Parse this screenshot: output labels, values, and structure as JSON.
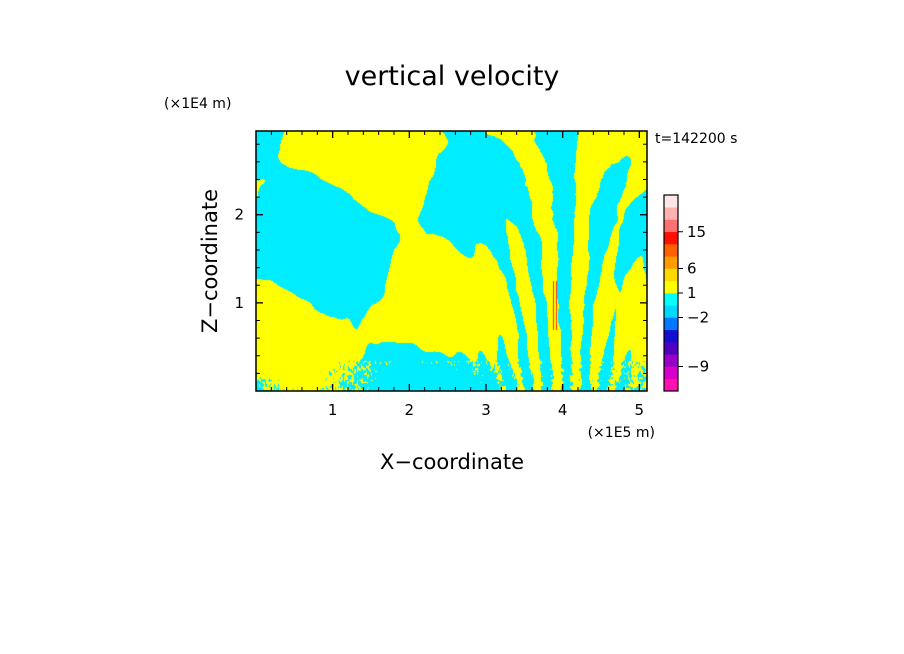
{
  "chart_data": {
    "type": "heatmap",
    "title": "vertical velocity",
    "xlabel": "X−coordinate",
    "ylabel": "Z−coordinate",
    "x_unit": "(×1E5 m)",
    "y_unit": "(×1E4 m)",
    "time_label": "t=142200 s",
    "xlim": [
      0,
      5.1
    ],
    "ylim": [
      0,
      2.95
    ],
    "x_ticks": [
      1,
      2,
      3,
      4,
      5
    ],
    "y_ticks": [
      1,
      2
    ],
    "grid": false,
    "colors": {
      "positive": "#ffff00",
      "negative": "#00ecff",
      "strong_positive": "#ff3010",
      "strong_negative": "#a000a0"
    },
    "colorbar": {
      "tick_labels": [
        "15",
        "6",
        "1",
        "−2",
        "−9"
      ],
      "levels": [
        {
          "color": "#ff10b0"
        },
        {
          "color": "#d800c8"
        },
        {
          "color": "#9800c8"
        },
        {
          "color": "#5000c0"
        },
        {
          "color": "#1010d0"
        },
        {
          "color": "#0078ff"
        },
        {
          "color": "#00d8ff"
        },
        {
          "color": "#00ffff"
        },
        {
          "color": "#ffff00"
        },
        {
          "color": "#ffd800"
        },
        {
          "color": "#ff9c00"
        },
        {
          "color": "#ff6000"
        },
        {
          "color": "#ff1000"
        },
        {
          "color": "#ff7070"
        },
        {
          "color": "#ffb0b0"
        },
        {
          "color": "#ffe6e6"
        }
      ]
    }
  }
}
